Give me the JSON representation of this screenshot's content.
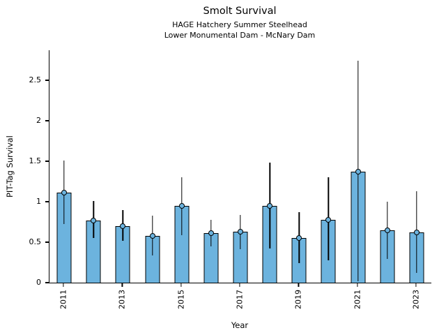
{
  "chart_data": {
    "type": "bar",
    "title": "Smolt Survival",
    "subtitle1": "HAGE Hatchery Summer Steelhead",
    "subtitle2": "Lower Monumental Dam - McNary Dam",
    "xlabel": "Year",
    "ylabel": "PIT-Tag Survival",
    "ylim": [
      0,
      2.87
    ],
    "yticks": [
      0,
      0.5,
      1,
      1.5,
      2,
      2.5
    ],
    "ytick_labels": [
      "0",
      "0.5",
      "1",
      "1.5",
      "2",
      "2.5"
    ],
    "bar_color": "#6cb3de",
    "bar_edge_color": "#000000",
    "error_bar_color": "#000000",
    "grid": false,
    "legend": null,
    "categories": [
      2011,
      2012,
      2013,
      2014,
      2015,
      2016,
      2017,
      2018,
      2019,
      2020,
      2021,
      2022,
      2023
    ],
    "xtick_labeled_categories": [
      2011,
      2013,
      2015,
      2017,
      2019,
      2021,
      2023
    ],
    "values": [
      1.11,
      0.77,
      0.7,
      0.58,
      0.95,
      0.61,
      0.63,
      0.95,
      0.55,
      0.78,
      1.37,
      0.65,
      0.62
    ],
    "error_low": [
      0.72,
      0.55,
      0.52,
      0.34,
      0.59,
      0.45,
      0.41,
      0.42,
      0.24,
      0.28,
      0.02,
      0.29,
      0.12
    ],
    "error_high": [
      1.51,
      1.01,
      0.9,
      0.83,
      1.3,
      0.78,
      0.84,
      1.48,
      0.87,
      1.3,
      2.74,
      1.0,
      1.13
    ]
  }
}
